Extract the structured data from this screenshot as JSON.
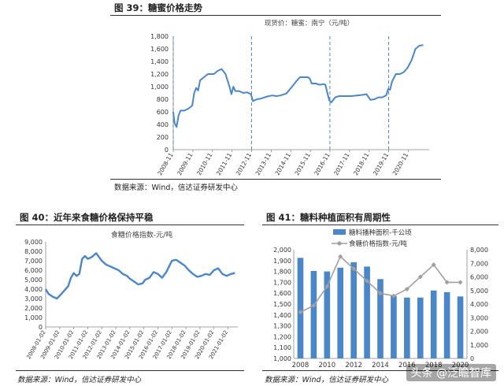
{
  "fig39": {
    "title": "图 39：糖蜜价格走势",
    "source": "数据来源：Wind，信达证券研发中心"
  },
  "fig40": {
    "title": "图 40：近年来食糖价格保持平稳",
    "source": "数据来源：Wind，信达证券研发中心"
  },
  "fig41": {
    "title": "图 41：糖料种植面积有周期性",
    "source": "数据来源：Wind，信达证券研发中心"
  },
  "watermark": "头条 @泛瞻智库",
  "chart_data": [
    {
      "id": "molasses",
      "type": "line",
      "title": "现货价：糖蜜：南宁（元/吨）",
      "ylim": [
        0,
        1800
      ],
      "yticks": [
        0,
        200,
        400,
        600,
        800,
        1000,
        1200,
        1400,
        1600,
        1800
      ],
      "xlim": [
        2008.83,
        2021.9
      ],
      "xticks": [
        "2008-11",
        "2009-11",
        "2010-11",
        "2011-11",
        "2012-11",
        "2013-11",
        "2014-11",
        "2015-11",
        "2016-11",
        "2017-11",
        "2018-11",
        "2019-11",
        "2020-11"
      ],
      "vlines": [
        2008.83,
        2012.83,
        2016.83,
        2019.83
      ],
      "color": "#4a86c8",
      "x": [
        2008.83,
        2008.9,
        2009.0,
        2009.1,
        2009.2,
        2009.4,
        2009.6,
        2009.8,
        2009.9,
        2010.0,
        2010.1,
        2010.2,
        2010.4,
        2010.6,
        2010.9,
        2011.1,
        2011.3,
        2011.5,
        2011.7,
        2011.8,
        2011.9,
        2012.0,
        2012.2,
        2012.4,
        2012.6,
        2012.8,
        2012.9,
        2013.1,
        2013.3,
        2013.5,
        2013.7,
        2013.9,
        2014.1,
        2014.3,
        2014.6,
        2014.9,
        2015.1,
        2015.3,
        2015.5,
        2015.7,
        2015.8,
        2015.9,
        2016.1,
        2016.3,
        2016.5,
        2016.6,
        2016.7,
        2016.8,
        2016.9,
        2017.1,
        2017.3,
        2017.6,
        2017.9,
        2018.2,
        2018.5,
        2018.7,
        2018.9,
        2019.1,
        2019.3,
        2019.5,
        2019.7,
        2019.8,
        2019.9,
        2020.0,
        2020.2,
        2020.4,
        2020.6,
        2020.8,
        2021.0,
        2021.2,
        2021.4,
        2021.6
      ],
      "y": [
        600,
        420,
        360,
        540,
        620,
        620,
        650,
        700,
        900,
        980,
        940,
        1100,
        1150,
        1200,
        1200,
        1250,
        1280,
        1200,
        1000,
        880,
        1000,
        930,
        930,
        900,
        910,
        880,
        770,
        800,
        810,
        830,
        850,
        860,
        850,
        860,
        890,
        1000,
        1080,
        1150,
        1150,
        1150,
        1130,
        1050,
        1050,
        1030,
        1040,
        1030,
        900,
        780,
        750,
        830,
        850,
        850,
        850,
        860,
        870,
        880,
        790,
        800,
        830,
        830,
        860,
        960,
        950,
        1080,
        1200,
        1200,
        1230,
        1300,
        1420,
        1600,
        1650,
        1660
      ]
    },
    {
      "id": "sugar-index",
      "type": "line",
      "title": "食糖价格指数-元/吨",
      "ylim": [
        0,
        9000
      ],
      "yticks": [
        0,
        1000,
        2000,
        3000,
        4000,
        5000,
        6000,
        7000,
        8000,
        9000
      ],
      "xlim": [
        2008.0,
        2021.7
      ],
      "xticks": [
        "2008-01-02",
        "2009-01-02",
        "2010-01-02",
        "2011-01-02",
        "2012-01-02",
        "2013-01-02",
        "2014-01-02",
        "2015-01-02",
        "2016-01-02",
        "2017-01-02",
        "2018-01-02",
        "2019-01-02",
        "2020-01-02",
        "2021-01-02"
      ],
      "color": "#4a86c8",
      "x": [
        2008.0,
        2008.2,
        2008.5,
        2008.8,
        2009.0,
        2009.3,
        2009.6,
        2009.8,
        2010.0,
        2010.2,
        2010.4,
        2010.6,
        2010.8,
        2011.0,
        2011.3,
        2011.6,
        2011.8,
        2012.0,
        2012.3,
        2012.6,
        2012.9,
        2013.2,
        2013.5,
        2013.8,
        2014.0,
        2014.3,
        2014.6,
        2014.9,
        2015.1,
        2015.4,
        2015.7,
        2016.0,
        2016.3,
        2016.6,
        2016.8,
        2017.0,
        2017.3,
        2017.6,
        2017.9,
        2018.2,
        2018.5,
        2018.8,
        2019.1,
        2019.4,
        2019.7,
        2020.0,
        2020.3,
        2020.6,
        2020.9,
        2021.2,
        2021.5
      ],
      "y": [
        4000,
        3500,
        3200,
        3000,
        3300,
        3800,
        4300,
        5200,
        5700,
        5400,
        5600,
        7200,
        7500,
        7200,
        7400,
        7800,
        7400,
        7000,
        6600,
        6400,
        6200,
        6000,
        5600,
        5400,
        5100,
        4800,
        4500,
        4600,
        5000,
        5200,
        5800,
        5600,
        5200,
        5800,
        6400,
        7000,
        7100,
        6800,
        6500,
        6000,
        5600,
        5300,
        5400,
        5600,
        5500,
        6000,
        6200,
        5600,
        5400,
        5600,
        5700
      ]
    },
    {
      "id": "area-vs-price",
      "type": "bar",
      "legend": [
        "糖料播种面积-千公顷",
        "食糖价格指数-元/吨"
      ],
      "categories": [
        2008,
        2009,
        2010,
        2011,
        2012,
        2013,
        2014,
        2015,
        2016,
        2017,
        2018,
        2019,
        2020
      ],
      "xticks": [
        2008,
        2010,
        2012,
        2014,
        2016,
        2018,
        2020
      ],
      "y_left": {
        "min": 1000,
        "max": 2000,
        "ticks": [
          1000,
          1100,
          1200,
          1300,
          1400,
          1500,
          1600,
          1700,
          1800,
          1900,
          2000
        ]
      },
      "y_right": {
        "min": 0,
        "max": 8000,
        "ticks": [
          0,
          1000,
          2000,
          3000,
          4000,
          5000,
          6000,
          7000,
          8000
        ]
      },
      "series": [
        {
          "name": "糖料播种面积-千公顷",
          "axis": "left",
          "color": "#4a86c8",
          "values": [
            1925,
            1805,
            1800,
            1835,
            1885,
            1845,
            1730,
            1575,
            1560,
            1560,
            1625,
            1610,
            1570
          ]
        },
        {
          "name": "食糖价格指数-元/吨",
          "axis": "right",
          "color": "#a0a0a0",
          "values": [
            3400,
            3900,
            5300,
            7500,
            6600,
            5700,
            4800,
            4600,
            5100,
            6000,
            6900,
            5600,
            5600
          ]
        }
      ]
    }
  ]
}
